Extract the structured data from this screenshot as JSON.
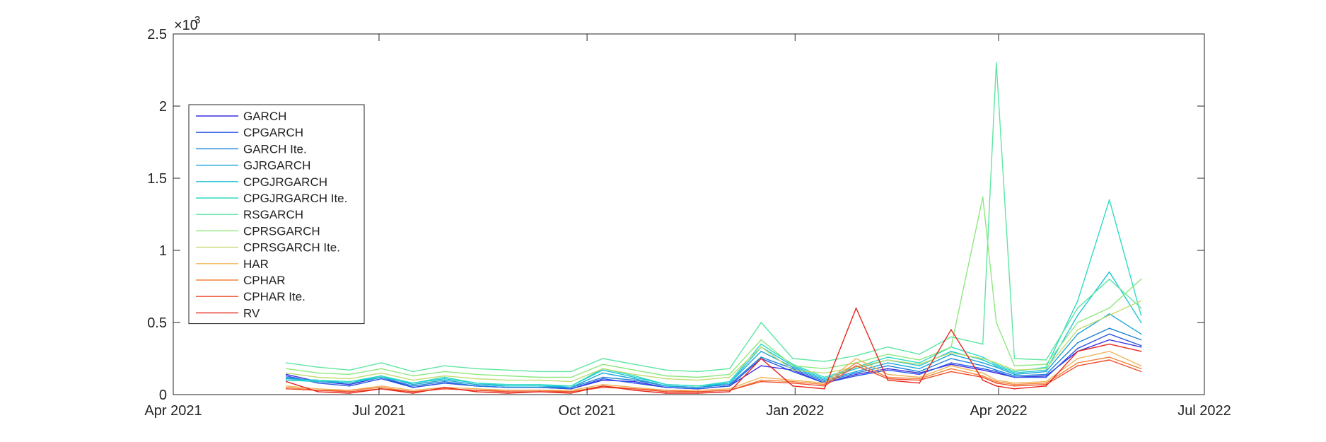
{
  "chart_data": {
    "type": "line",
    "title": "",
    "xlabel": "",
    "ylabel": "",
    "y_exponent_label": "×10",
    "y_exponent_power": "-3",
    "xlim": [
      "2021-04-01",
      "2022-07-01"
    ],
    "ylim": [
      0,
      0.0025
    ],
    "x_ticks": [
      {
        "date": "2021-04-01",
        "label": "Apr 2021"
      },
      {
        "date": "2021-07-01",
        "label": "Jul 2021"
      },
      {
        "date": "2021-10-01",
        "label": "Oct 2021"
      },
      {
        "date": "2022-01-01",
        "label": "Jan 2022"
      },
      {
        "date": "2022-04-01",
        "label": "Apr 2022"
      },
      {
        "date": "2022-07-01",
        "label": "Jul 2022"
      }
    ],
    "y_ticks": [
      {
        "value": 0,
        "label": "0"
      },
      {
        "value": 0.0005,
        "label": "0.5"
      },
      {
        "value": 0.001,
        "label": "1"
      },
      {
        "value": 0.0015,
        "label": "1.5"
      },
      {
        "value": 0.002,
        "label": "2"
      },
      {
        "value": 0.0025,
        "label": "2.5"
      }
    ],
    "grid": false,
    "legend_position": "upper-left",
    "x": [
      "2021-05-21",
      "2021-06-04",
      "2021-06-18",
      "2021-07-02",
      "2021-07-16",
      "2021-07-30",
      "2021-08-13",
      "2021-08-27",
      "2021-09-10",
      "2021-09-24",
      "2021-10-08",
      "2021-10-22",
      "2021-11-05",
      "2021-11-19",
      "2021-12-03",
      "2021-12-17",
      "2021-12-31",
      "2022-01-14",
      "2022-01-28",
      "2022-02-11",
      "2022-02-25",
      "2022-03-11",
      "2022-03-25",
      "2022-03-31",
      "2022-04-08",
      "2022-04-22",
      "2022-05-06",
      "2022-05-20",
      "2022-06-03"
    ],
    "series": [
      {
        "name": "GARCH",
        "color": "#3b2fe0",
        "values": [
          0.00014,
          9e-05,
          7e-05,
          0.00012,
          5e-05,
          8e-05,
          6e-05,
          5e-05,
          5e-05,
          4e-05,
          0.0001,
          9e-05,
          5e-05,
          4e-05,
          6e-05,
          0.0002,
          0.00017,
          8e-05,
          0.00014,
          0.00018,
          0.00015,
          0.00021,
          0.00017,
          0.00015,
          0.00012,
          0.00013,
          0.0003,
          0.00038,
          0.00033
        ]
      },
      {
        "name": "CPGARCH",
        "color": "#2a55e6",
        "values": [
          0.00013,
          8e-05,
          6e-05,
          0.00011,
          5e-05,
          8e-05,
          6e-05,
          5e-05,
          5e-05,
          4e-05,
          0.00011,
          8e-05,
          5e-05,
          4e-05,
          6e-05,
          0.00025,
          0.00016,
          8e-05,
          0.00013,
          0.00017,
          0.00014,
          0.00022,
          0.00018,
          0.00016,
          0.00012,
          0.00012,
          0.00032,
          0.00042,
          0.00034
        ]
      },
      {
        "name": "GARCH Ite.",
        "color": "#1f82d8",
        "values": [
          0.00012,
          9e-05,
          8e-05,
          0.00012,
          6e-05,
          9e-05,
          6e-05,
          5e-05,
          5e-05,
          5e-05,
          0.00012,
          0.0001,
          6e-05,
          5e-05,
          7e-05,
          0.00026,
          0.00018,
          9e-05,
          0.00015,
          0.0002,
          0.00016,
          0.00025,
          0.0002,
          0.00017,
          0.00013,
          0.00014,
          0.00036,
          0.00046,
          0.00038
        ]
      },
      {
        "name": "GJRGARCH",
        "color": "#19a6d6",
        "values": [
          0.00011,
          0.0001,
          8e-05,
          0.00013,
          7e-05,
          0.0001,
          7e-05,
          6e-05,
          6e-05,
          5e-05,
          0.00015,
          0.00011,
          6e-05,
          5e-05,
          8e-05,
          0.0003,
          0.00019,
          0.0001,
          0.00016,
          0.00022,
          0.00018,
          0.00028,
          0.00022,
          0.00019,
          0.00014,
          0.00016,
          0.00042,
          0.00056,
          0.00042
        ]
      },
      {
        "name": "CPGJRGARCH",
        "color": "#1ec6d6",
        "values": [
          0.0001,
          9e-05,
          8e-05,
          0.00012,
          8e-05,
          0.00011,
          8e-05,
          6e-05,
          6e-05,
          6e-05,
          0.00017,
          0.00012,
          7e-05,
          6e-05,
          8e-05,
          0.00033,
          0.0002,
          0.00011,
          0.00018,
          0.00024,
          0.0002,
          0.0003,
          0.00024,
          0.0002,
          0.00015,
          0.00017,
          0.00055,
          0.00085,
          0.0005
        ]
      },
      {
        "name": "CPGJRGARCH Ite.",
        "color": "#2edcc4",
        "values": [
          0.0001,
          0.0001,
          9e-05,
          0.00013,
          8e-05,
          0.00012,
          8e-05,
          7e-05,
          7e-05,
          6e-05,
          0.00018,
          0.00013,
          7e-05,
          6e-05,
          9e-05,
          0.00035,
          0.00021,
          0.00012,
          0.00019,
          0.00026,
          0.00022,
          0.00033,
          0.00026,
          0.00021,
          0.00016,
          0.00019,
          0.00065,
          0.00135,
          0.00055
        ]
      },
      {
        "name": "RSGARCH",
        "color": "#5ee6a2",
        "values": [
          0.00022,
          0.00019,
          0.00017,
          0.00022,
          0.00016,
          0.0002,
          0.00018,
          0.00017,
          0.00016,
          0.00016,
          0.00025,
          0.00021,
          0.00017,
          0.00016,
          0.00018,
          0.0005,
          0.00025,
          0.00023,
          0.00027,
          0.00033,
          0.00028,
          0.0004,
          0.00035,
          0.0023,
          0.00025,
          0.00024,
          0.0006,
          0.0008,
          0.0006
        ]
      },
      {
        "name": "CPRSGARCH",
        "color": "#8ee87f",
        "values": [
          0.00018,
          0.00015,
          0.00014,
          0.00018,
          0.00013,
          0.00016,
          0.00014,
          0.00013,
          0.00012,
          0.00012,
          0.00021,
          0.00017,
          0.00013,
          0.00012,
          0.00014,
          0.00038,
          0.0002,
          0.00018,
          0.00022,
          0.00028,
          0.00024,
          0.00033,
          0.00137,
          0.0005,
          0.0002,
          0.00021,
          0.0005,
          0.0006,
          0.0008
        ]
      },
      {
        "name": "CPRSGARCH Ite.",
        "color": "#c2dc72",
        "values": [
          0.00015,
          0.00012,
          0.00011,
          0.00015,
          0.0001,
          0.00013,
          0.00011,
          0.0001,
          0.0001,
          9e-05,
          0.00018,
          0.00014,
          0.00011,
          0.0001,
          0.00012,
          0.00033,
          0.00017,
          0.00015,
          0.00019,
          0.00024,
          0.00021,
          0.00029,
          0.00025,
          0.00022,
          0.00017,
          0.00018,
          0.00045,
          0.00055,
          0.00065
        ]
      },
      {
        "name": "HAR",
        "color": "#f0b45a",
        "values": [
          6e-05,
          4e-05,
          3e-05,
          6e-05,
          3e-05,
          5e-05,
          4e-05,
          3e-05,
          3e-05,
          3e-05,
          7e-05,
          5e-05,
          3e-05,
          3e-05,
          4e-05,
          0.00012,
          0.0001,
          8e-05,
          0.00025,
          0.00014,
          0.00012,
          0.0002,
          0.00015,
          0.0001,
          8e-05,
          9e-05,
          0.00025,
          0.0003,
          0.0002
        ]
      },
      {
        "name": "CPHAR",
        "color": "#f4833a",
        "values": [
          5e-05,
          3e-05,
          3e-05,
          5e-05,
          2e-05,
          4e-05,
          3e-05,
          3e-05,
          3e-05,
          2e-05,
          6e-05,
          4e-05,
          3e-05,
          2e-05,
          3e-05,
          0.0001,
          9e-05,
          7e-05,
          0.00022,
          0.00012,
          0.00011,
          0.00018,
          0.00013,
          9e-05,
          7e-05,
          8e-05,
          0.00022,
          0.00026,
          0.00018
        ]
      },
      {
        "name": "CPHAR Ite.",
        "color": "#ef4d2c",
        "values": [
          4e-05,
          3e-05,
          2e-05,
          4e-05,
          2e-05,
          4e-05,
          3e-05,
          2e-05,
          2e-05,
          2e-05,
          5e-05,
          4e-05,
          2e-05,
          2e-05,
          3e-05,
          9e-05,
          8e-05,
          6e-05,
          0.0002,
          0.00011,
          0.0001,
          0.00016,
          0.00012,
          8e-05,
          6e-05,
          7e-05,
          0.0002,
          0.00024,
          0.00016
        ]
      },
      {
        "name": "RV",
        "color": "#e6261c",
        "values": [
          9e-05,
          2e-05,
          1e-05,
          4e-05,
          1e-05,
          5e-05,
          2e-05,
          1e-05,
          2e-05,
          1e-05,
          6e-05,
          3e-05,
          1e-05,
          1e-05,
          2e-05,
          0.00025,
          6e-05,
          4e-05,
          0.0006,
          0.0001,
          8e-05,
          0.00045,
          0.0001,
          6e-05,
          4e-05,
          6e-05,
          0.0003,
          0.00035,
          0.0003
        ]
      }
    ]
  }
}
